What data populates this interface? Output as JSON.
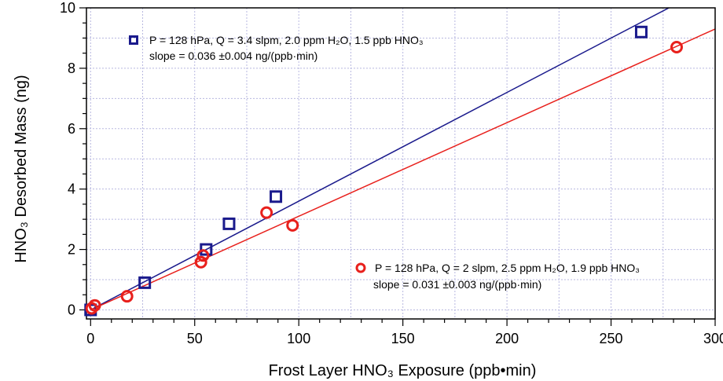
{
  "chart_data": {
    "type": "scatter",
    "xlabel": "Frost Layer HNO₃ Exposure (ppb•min)",
    "ylabel": "HNO₃ Desorbed Mass (ng)",
    "xlim": [
      -2,
      300
    ],
    "ylim": [
      -0.3,
      10
    ],
    "xticks": [
      0,
      50,
      100,
      150,
      200,
      250,
      300
    ],
    "yticks": [
      0,
      2,
      4,
      6,
      8,
      10
    ],
    "xtick_labels": [
      "0",
      "50",
      "100",
      "150",
      "200",
      "250",
      "300"
    ],
    "ytick_labels": [
      "0",
      "2",
      "4",
      "6",
      "8",
      "10"
    ],
    "grid": true,
    "series": [
      {
        "name": "P = 128 hPa, Q = 3.4 slpm, 2.0 ppm H₂O, 1.5 ppb HNO₃",
        "slope_text": "slope = 0.036 ±0.004 ng/(ppb·min)",
        "marker": "square",
        "color": "#1a1a8c",
        "x": [
          0,
          26,
          55.5,
          66.5,
          89,
          264.5
        ],
        "y": [
          0,
          0.9,
          2.0,
          2.85,
          3.75,
          9.2
        ],
        "fit": {
          "slope": 0.036,
          "intercept": 0,
          "x_range": [
            0,
            279
          ]
        }
      },
      {
        "name": "P = 128 hPa, Q = 2 slpm, 2.5 ppm H₂O, 1.9 ppb HNO₃",
        "slope_text": "slope = 0.031 ±0.003 ng/(ppb·min)",
        "marker": "circle",
        "color": "#e8201c",
        "x": [
          0.5,
          2,
          17.5,
          53,
          54,
          84.5,
          97,
          281.5
        ],
        "y": [
          0.05,
          0.15,
          0.45,
          1.58,
          1.8,
          3.22,
          2.8,
          8.7
        ],
        "fit": {
          "slope": 0.031,
          "intercept": 0,
          "x_range": [
            0,
            302
          ]
        }
      }
    ]
  }
}
